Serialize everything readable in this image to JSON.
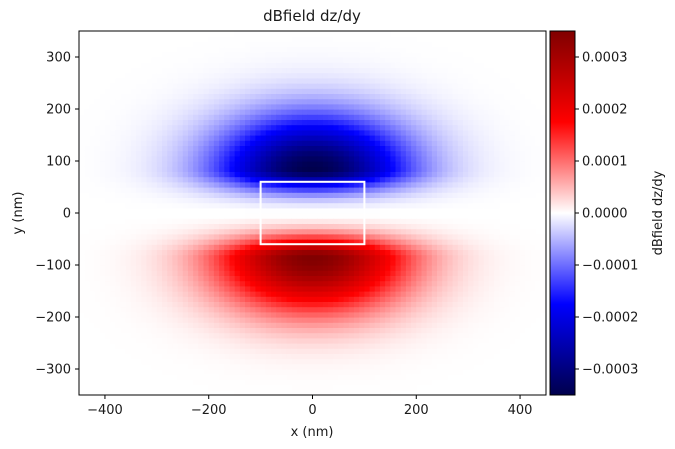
{
  "chart_data": {
    "type": "heatmap",
    "title": "dBfield dz/dy",
    "xlabel": "x (nm)",
    "ylabel": "y (nm)",
    "xlim": [
      -450,
      450
    ],
    "ylim": [
      -350,
      350
    ],
    "x_ticks": [
      -400,
      -200,
      0,
      200,
      400
    ],
    "x_tick_labels": [
      "−400",
      "−200",
      "0",
      "200",
      "400"
    ],
    "y_ticks": [
      -300,
      -200,
      -100,
      0,
      100,
      200,
      300
    ],
    "y_tick_labels": [
      "−300",
      "−200",
      "−100",
      "0",
      "100",
      "200",
      "300"
    ],
    "colormap": "seismic",
    "colorbar": {
      "label": "dBfield dz/dy",
      "range": [
        -0.00035,
        0.00035
      ],
      "ticks": [
        -0.0003,
        -0.0002,
        -0.0001,
        0.0,
        0.0001,
        0.0002,
        0.0003
      ],
      "tick_labels": [
        "−0.0003",
        "−0.0002",
        "−0.0001",
        "0.0000",
        "0.0001",
        "0.0002",
        "0.0003"
      ]
    },
    "field": {
      "description_values": "antisymmetric about y=0",
      "peak_negative": {
        "x": 0,
        "y": 80,
        "value": -0.00035
      },
      "peak_positive": {
        "x": 0,
        "y": -80,
        "value": 0.00035
      },
      "grid_step_nm": 10
    },
    "rectangle": {
      "x": [
        -100,
        100
      ],
      "y": [
        -60,
        60
      ],
      "color": "#ffffff"
    }
  }
}
